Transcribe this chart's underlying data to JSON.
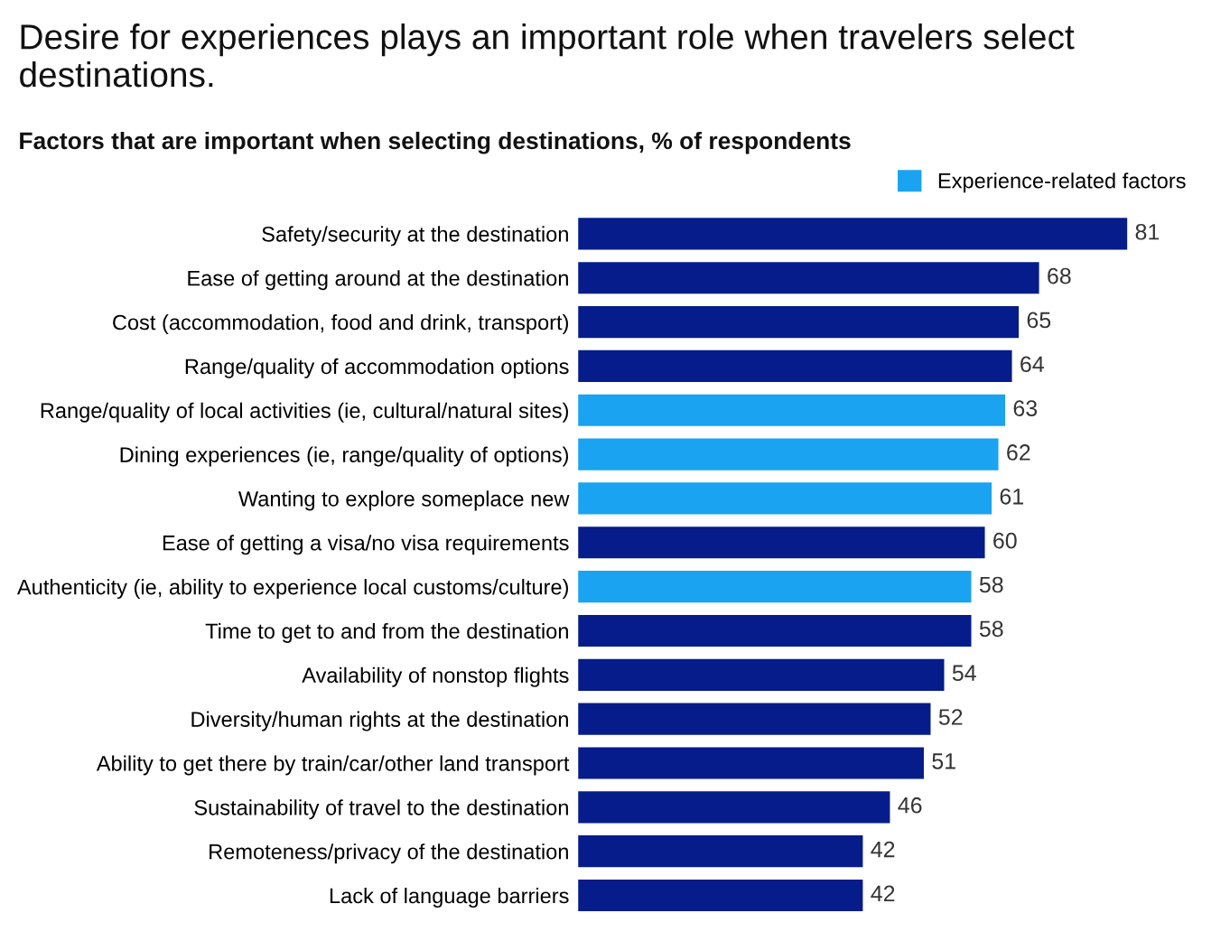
{
  "chart_data": {
    "type": "bar",
    "orientation": "horizontal",
    "title": "Desire for experiences plays an important role when travelers select destinations.",
    "subtitle": "Factors that are important when selecting destinations, % of respondents",
    "categories": [
      "Safety/security at the destination",
      "Ease of getting around at the destination",
      "Cost (accommodation, food and drink, transport)",
      "Range/quality of accommodation options",
      "Range/quality of local activities (ie, cultural/natural sites)",
      "Dining experiences (ie, range/quality of options)",
      "Wanting to explore someplace new",
      "Ease of getting a visa/no visa requirements",
      "Authenticity (ie, ability to experience local customs/culture)",
      "Time to get to and from the destination",
      "Availability of nonstop flights",
      "Diversity/human rights at the destination",
      "Ability to get there by train/car/other land transport",
      "Sustainability of travel to the destination",
      "Remoteness/privacy of the destination",
      "Lack of language barriers"
    ],
    "series": [
      {
        "color": "#051c8a",
        "values": [
          81,
          68,
          65,
          64,
          null,
          null,
          null,
          60,
          null,
          58,
          54,
          52,
          51,
          46,
          42,
          42
        ]
      },
      {
        "name": "Experience-related factors",
        "color": "#1aa3f0",
        "values": [
          null,
          null,
          null,
          null,
          63,
          62,
          61,
          null,
          58,
          null,
          null,
          null,
          null,
          null,
          null,
          null
        ]
      }
    ],
    "data_labels": true,
    "legend": "top right",
    "tick_labels": "y",
    "grid": false
  }
}
